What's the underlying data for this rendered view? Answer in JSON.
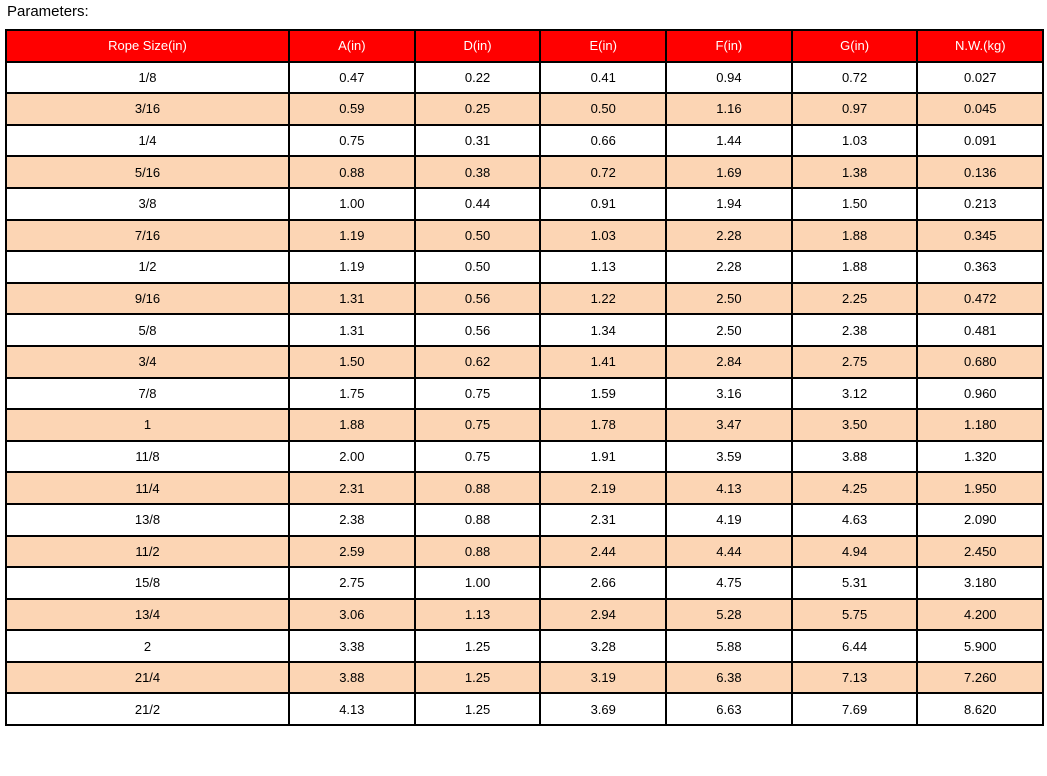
{
  "title": "Parameters:",
  "colors": {
    "header_bg": "#ff0000",
    "header_text": "#ffffff",
    "alt_row_bg": "#fcd5b4"
  },
  "table": {
    "headers": [
      "Rope Size(in)",
      "A(in)",
      "D(in)",
      "E(in)",
      "F(in)",
      "G(in)",
      "N.W.(kg)"
    ],
    "rows": [
      [
        "1/8",
        "0.47",
        "0.22",
        "0.41",
        "0.94",
        "0.72",
        "0.027"
      ],
      [
        "3/16",
        "0.59",
        "0.25",
        "0.50",
        "1.16",
        "0.97",
        "0.045"
      ],
      [
        "1/4",
        "0.75",
        "0.31",
        "0.66",
        "1.44",
        "1.03",
        "0.091"
      ],
      [
        "5/16",
        "0.88",
        "0.38",
        "0.72",
        "1.69",
        "1.38",
        "0.136"
      ],
      [
        "3/8",
        "1.00",
        "0.44",
        "0.91",
        "1.94",
        "1.50",
        "0.213"
      ],
      [
        "7/16",
        "1.19",
        "0.50",
        "1.03",
        "2.28",
        "1.88",
        "0.345"
      ],
      [
        "1/2",
        "1.19",
        "0.50",
        "1.13",
        "2.28",
        "1.88",
        "0.363"
      ],
      [
        "9/16",
        "1.31",
        "0.56",
        "1.22",
        "2.50",
        "2.25",
        "0.472"
      ],
      [
        "5/8",
        "1.31",
        "0.56",
        "1.34",
        "2.50",
        "2.38",
        "0.481"
      ],
      [
        "3/4",
        "1.50",
        "0.62",
        "1.41",
        "2.84",
        "2.75",
        "0.680"
      ],
      [
        "7/8",
        "1.75",
        "0.75",
        "1.59",
        "3.16",
        "3.12",
        "0.960"
      ],
      [
        "1",
        "1.88",
        "0.75",
        "1.78",
        "3.47",
        "3.50",
        "1.180"
      ],
      [
        "11/8",
        "2.00",
        "0.75",
        "1.91",
        "3.59",
        "3.88",
        "1.320"
      ],
      [
        "11/4",
        "2.31",
        "0.88",
        "2.19",
        "4.13",
        "4.25",
        "1.950"
      ],
      [
        "13/8",
        "2.38",
        "0.88",
        "2.31",
        "4.19",
        "4.63",
        "2.090"
      ],
      [
        "11/2",
        "2.59",
        "0.88",
        "2.44",
        "4.44",
        "4.94",
        "2.450"
      ],
      [
        "15/8",
        "2.75",
        "1.00",
        "2.66",
        "4.75",
        "5.31",
        "3.180"
      ],
      [
        "13/4",
        "3.06",
        "1.13",
        "2.94",
        "5.28",
        "5.75",
        "4.200"
      ],
      [
        "2",
        "3.38",
        "1.25",
        "3.28",
        "5.88",
        "6.44",
        "5.900"
      ],
      [
        "21/4",
        "3.88",
        "1.25",
        "3.19",
        "6.38",
        "7.13",
        "7.260"
      ],
      [
        "21/2",
        "4.13",
        "1.25",
        "3.69",
        "6.63",
        "7.69",
        "8.620"
      ]
    ]
  }
}
